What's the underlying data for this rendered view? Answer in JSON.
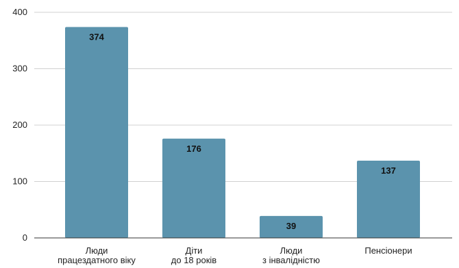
{
  "chart_data": {
    "type": "bar",
    "categories": [
      [
        "Люди",
        "працездатного віку"
      ],
      [
        "Діти",
        "до 18 років"
      ],
      [
        "Люди",
        "з інвалідністю"
      ],
      [
        "Пенсіонери"
      ]
    ],
    "values": [
      374,
      176,
      39,
      137
    ],
    "data_labels": [
      "374",
      "176",
      "39",
      "137"
    ],
    "yticks": [
      "0",
      "100",
      "200",
      "300",
      "400"
    ],
    "ylim": [
      0,
      400
    ],
    "grid": true,
    "legend": "none",
    "bar_color": "#5b93ad"
  }
}
